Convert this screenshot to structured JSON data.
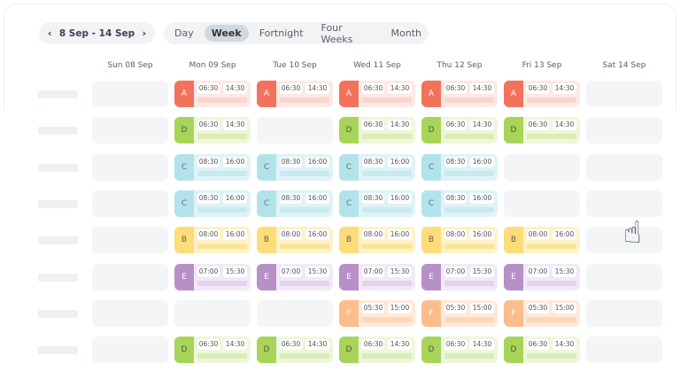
{
  "nav": {
    "range": "8 Sep - 14 Sep",
    "prev_icon": "chevron-left-icon",
    "next_icon": "chevron-right-icon",
    "prev": "‹",
    "next": "›"
  },
  "views": [
    {
      "label": "Day"
    },
    {
      "label": "Week",
      "active": true
    },
    {
      "label": "Fortnight"
    },
    {
      "label": "Four Weeks"
    },
    {
      "label": "Month"
    }
  ],
  "days": [
    "Sun 08 Sep",
    "Mon 09 Sep",
    "Tue 10 Sep",
    "Wed 11 Sep",
    "Thu 12 Sep",
    "Fri 13 Sep",
    "Sat 14 Sep"
  ],
  "shift_types": {
    "A": {
      "start": "06:30",
      "end": "14:30",
      "tab": "#f2735c",
      "bg": "#fde9e5",
      "bar": "#fcd5cf",
      "fg": "#fff"
    },
    "D": {
      "start": "06:30",
      "end": "14:30",
      "tab": "#a8d45a",
      "bg": "#eef7dc",
      "bar": "#d9edb5",
      "fg": "#4d5a3a"
    },
    "C": {
      "start": "08:30",
      "end": "16:00",
      "tab": "#b3e3ea",
      "bg": "#dff3f6",
      "bar": "#c7eaf0",
      "fg": "#5d7075"
    },
    "B": {
      "start": "08:00",
      "end": "16:00",
      "tab": "#fedc7a",
      "bg": "#fff2c9",
      "bar": "#fbe59a",
      "fg": "#6b6040"
    },
    "E": {
      "start": "07:00",
      "end": "15:30",
      "tab": "#b690c7",
      "bg": "#f3e8f7",
      "bar": "#e5d3ee",
      "fg": "#fff"
    },
    "F": {
      "start": "05:30",
      "end": "15:00",
      "tab": "#fdbd8b",
      "bg": "#feeadb",
      "bar": "#fdd8bb",
      "fg": "#fff"
    }
  },
  "rows": [
    [
      null,
      "A",
      "A",
      "A",
      "A",
      "A",
      null
    ],
    [
      null,
      "D",
      null,
      "D",
      "D",
      "D",
      null
    ],
    [
      null,
      "C",
      "C",
      "C",
      "C",
      null,
      null
    ],
    [
      null,
      "C",
      "C",
      "C",
      "C",
      null,
      null
    ],
    [
      null,
      "B",
      "B",
      "B",
      "B",
      "B",
      null
    ],
    [
      null,
      "E",
      "E",
      "E",
      "E",
      "E",
      null
    ],
    [
      null,
      null,
      null,
      "F",
      "F",
      "F",
      null
    ],
    [
      null,
      "D",
      "D",
      "D",
      "D",
      "D",
      null
    ]
  ],
  "cursor": "hand-pointer-icon"
}
